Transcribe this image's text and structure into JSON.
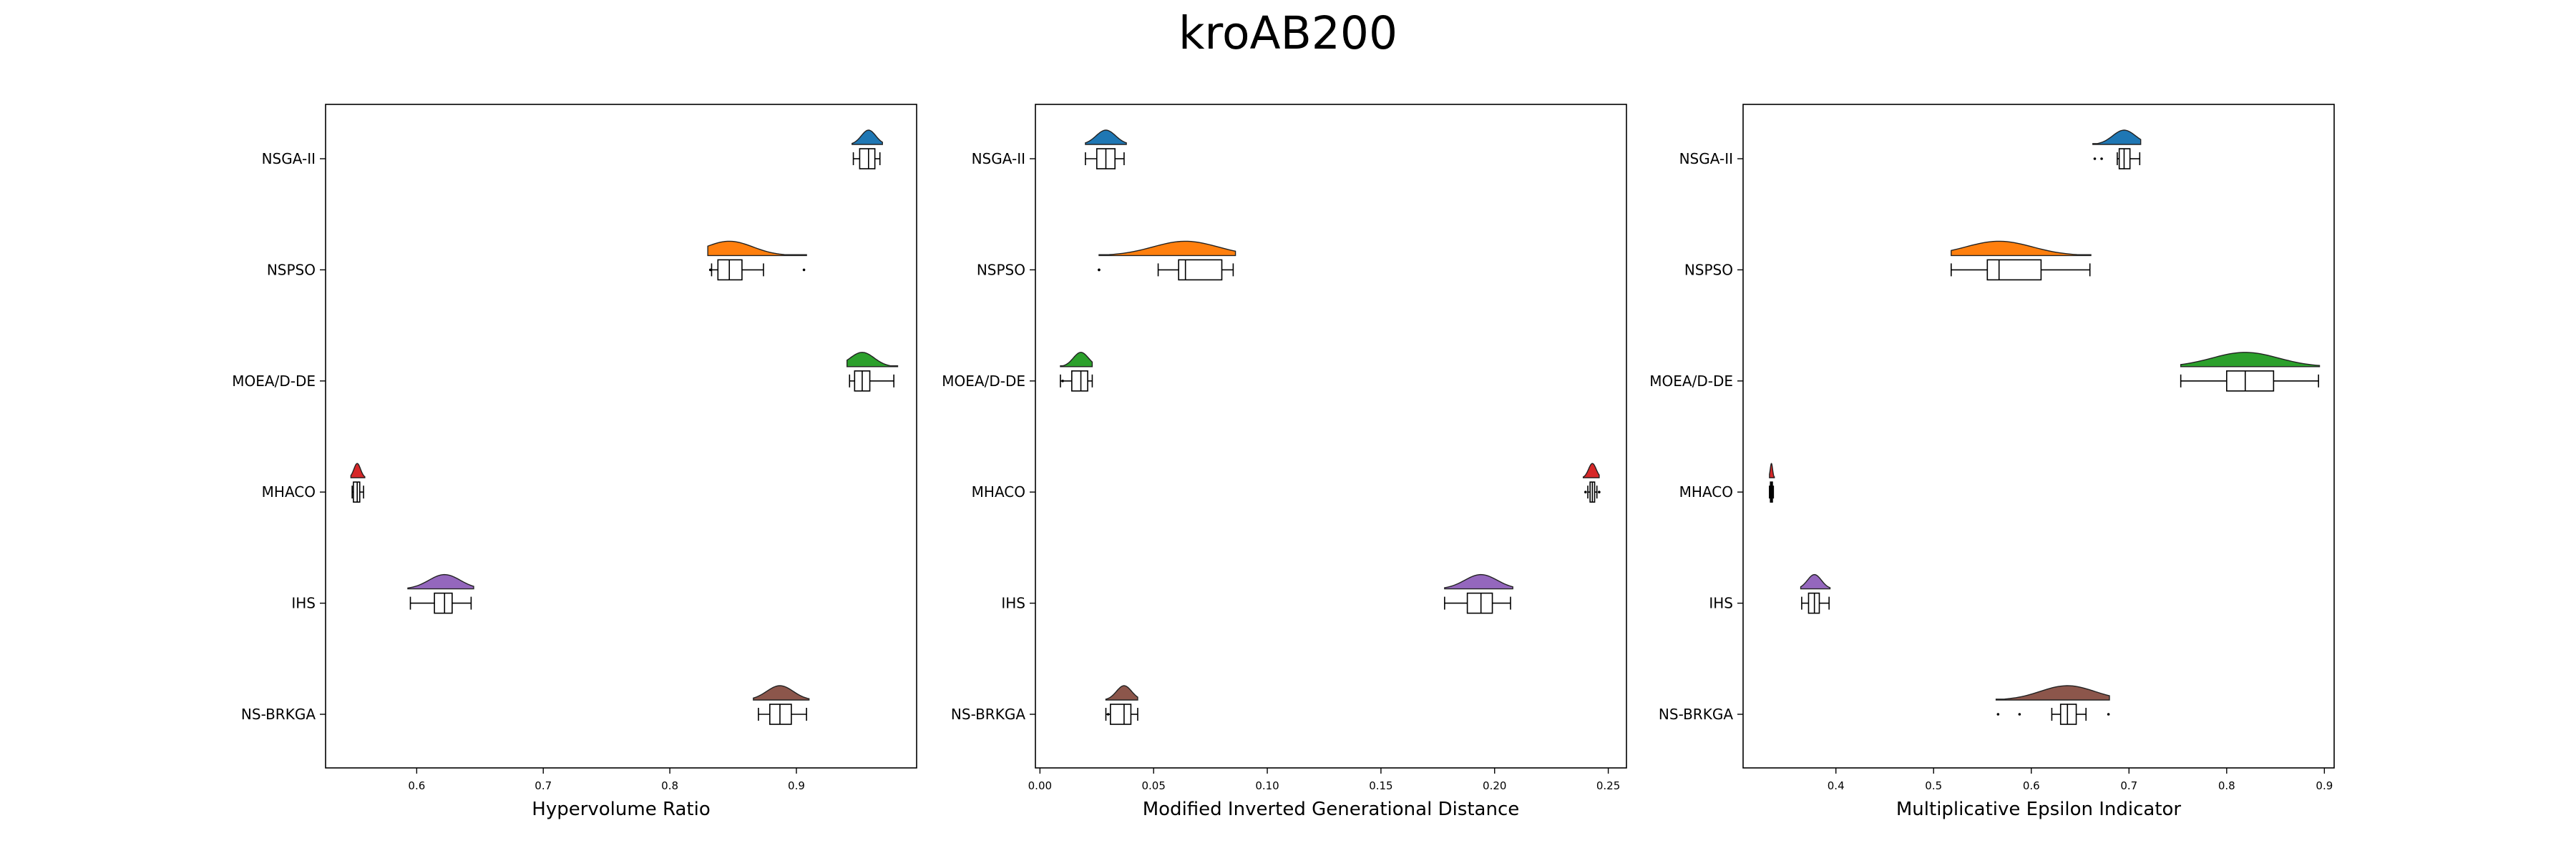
{
  "figure": {
    "title": "kroAB200"
  },
  "chart_data": [
    {
      "type": "violin_box",
      "xlabel": "Hypervolume Ratio",
      "xlim": [
        0.528,
        0.995
      ],
      "xticks": [
        0.6,
        0.7,
        0.8,
        0.9
      ],
      "xtick_labels": [
        "0.6",
        "0.7",
        "0.8",
        "0.9"
      ],
      "categories": [
        "NSGA-II",
        "NSPSO",
        "MOEA/D-DE",
        "MHACO",
        "IHS",
        "NS-BRKGA"
      ],
      "series": [
        {
          "name": "NSGA-II",
          "color": "#1f77b4",
          "box": {
            "whislo": 0.945,
            "q1": 0.95,
            "med": 0.957,
            "q3": 0.962,
            "whishi": 0.966
          },
          "fliers": [],
          "violin": [
            0.944,
            0.968
          ]
        },
        {
          "name": "NSPSO",
          "color": "#ff7f0e",
          "box": {
            "whislo": 0.833,
            "q1": 0.838,
            "med": 0.847,
            "q3": 0.857,
            "whishi": 0.874
          },
          "fliers": [
            0.832,
            0.906
          ],
          "violin": [
            0.83,
            0.908
          ]
        },
        {
          "name": "MOEA/D-DE",
          "color": "#2ca02c",
          "box": {
            "whislo": 0.942,
            "q1": 0.946,
            "med": 0.952,
            "q3": 0.958,
            "whishi": 0.977
          },
          "fliers": [],
          "violin": [
            0.94,
            0.98
          ]
        },
        {
          "name": "MHACO",
          "color": "#d62728",
          "box": {
            "whislo": 0.549,
            "q1": 0.55,
            "med": 0.553,
            "q3": 0.555,
            "whishi": 0.558
          },
          "fliers": [],
          "violin": [
            0.548,
            0.559
          ]
        },
        {
          "name": "IHS",
          "color": "#9467bd",
          "box": {
            "whislo": 0.595,
            "q1": 0.614,
            "med": 0.622,
            "q3": 0.628,
            "whishi": 0.643
          },
          "fliers": [],
          "violin": [
            0.593,
            0.645
          ]
        },
        {
          "name": "NS-BRKGA",
          "color": "#8c564b",
          "box": {
            "whislo": 0.87,
            "q1": 0.879,
            "med": 0.887,
            "q3": 0.896,
            "whishi": 0.908
          },
          "fliers": [],
          "violin": [
            0.866,
            0.91
          ]
        }
      ]
    },
    {
      "type": "violin_box",
      "xlabel": "Modified Inverted Generational Distance",
      "xlim": [
        -0.002,
        0.258
      ],
      "xticks": [
        0.0,
        0.05,
        0.1,
        0.15,
        0.2,
        0.25
      ],
      "xtick_labels": [
        "0.00",
        "0.05",
        "0.10",
        "0.15",
        "0.20",
        "0.25"
      ],
      "categories": [
        "NSGA-II",
        "NSPSO",
        "MOEA/D-DE",
        "MHACO",
        "IHS",
        "NS-BRKGA"
      ],
      "series": [
        {
          "name": "NSGA-II",
          "color": "#1f77b4",
          "box": {
            "whislo": 0.02,
            "q1": 0.025,
            "med": 0.029,
            "q3": 0.033,
            "whishi": 0.037
          },
          "fliers": [],
          "violin": [
            0.02,
            0.038
          ]
        },
        {
          "name": "NSPSO",
          "color": "#ff7f0e",
          "box": {
            "whislo": 0.052,
            "q1": 0.061,
            "med": 0.064,
            "q3": 0.08,
            "whishi": 0.085
          },
          "fliers": [
            0.026,
            0.026
          ],
          "violin": [
            0.026,
            0.086
          ]
        },
        {
          "name": "MOEA/D-DE",
          "color": "#2ca02c",
          "box": {
            "whislo": 0.009,
            "q1": 0.014,
            "med": 0.018,
            "q3": 0.021,
            "whishi": 0.023
          },
          "fliers": [
            0.01
          ],
          "violin": [
            0.009,
            0.023
          ]
        },
        {
          "name": "MHACO",
          "color": "#d62728",
          "box": {
            "whislo": 0.241,
            "q1": 0.242,
            "med": 0.243,
            "q3": 0.244,
            "whishi": 0.245
          },
          "fliers": [
            0.24,
            0.246
          ],
          "violin": [
            0.239,
            0.246
          ]
        },
        {
          "name": "IHS",
          "color": "#9467bd",
          "box": {
            "whislo": 0.178,
            "q1": 0.188,
            "med": 0.194,
            "q3": 0.199,
            "whishi": 0.207
          },
          "fliers": [],
          "violin": [
            0.178,
            0.208
          ]
        },
        {
          "name": "NS-BRKGA",
          "color": "#8c564b",
          "box": {
            "whislo": 0.029,
            "q1": 0.031,
            "med": 0.037,
            "q3": 0.04,
            "whishi": 0.043
          },
          "fliers": [
            0.03
          ],
          "violin": [
            0.029,
            0.043
          ]
        }
      ]
    },
    {
      "type": "violin_box",
      "xlabel": "Multiplicative Epsilon Indicator",
      "xlim": [
        0.305,
        0.91
      ],
      "xticks": [
        0.4,
        0.5,
        0.6,
        0.7,
        0.8,
        0.9
      ],
      "xtick_labels": [
        "0.4",
        "0.5",
        "0.6",
        "0.7",
        "0.8",
        "0.9"
      ],
      "categories": [
        "NSGA-II",
        "NSPSO",
        "MOEA/D-DE",
        "MHACO",
        "IHS",
        "NS-BRKGA"
      ],
      "series": [
        {
          "name": "NSGA-II",
          "color": "#1f77b4",
          "box": {
            "whislo": 0.688,
            "q1": 0.69,
            "med": 0.695,
            "q3": 0.701,
            "whishi": 0.711
          },
          "fliers": [
            0.665,
            0.672
          ],
          "violin": [
            0.663,
            0.712
          ]
        },
        {
          "name": "NSPSO",
          "color": "#ff7f0e",
          "box": {
            "whislo": 0.518,
            "q1": 0.555,
            "med": 0.567,
            "q3": 0.61,
            "whishi": 0.66
          },
          "fliers": [],
          "violin": [
            0.518,
            0.661
          ]
        },
        {
          "name": "MOEA/D-DE",
          "color": "#2ca02c",
          "box": {
            "whislo": 0.753,
            "q1": 0.8,
            "med": 0.819,
            "q3": 0.848,
            "whishi": 0.894
          },
          "fliers": [],
          "violin": [
            0.753,
            0.895
          ]
        },
        {
          "name": "MHACO",
          "color": "#d62728",
          "box": {
            "whislo": 0.332,
            "q1": 0.333,
            "med": 0.334,
            "q3": 0.335,
            "whishi": 0.336
          },
          "fliers": [],
          "violin": [
            0.332,
            0.337
          ]
        },
        {
          "name": "IHS",
          "color": "#9467bd",
          "box": {
            "whislo": 0.365,
            "q1": 0.372,
            "med": 0.378,
            "q3": 0.383,
            "whishi": 0.393
          },
          "fliers": [],
          "violin": [
            0.364,
            0.394
          ]
        },
        {
          "name": "NS-BRKGA",
          "color": "#8c564b",
          "box": {
            "whislo": 0.621,
            "q1": 0.63,
            "med": 0.637,
            "q3": 0.646,
            "whishi": 0.656
          },
          "fliers": [
            0.566,
            0.588,
            0.679
          ],
          "violin": [
            0.564,
            0.68
          ]
        }
      ]
    }
  ]
}
